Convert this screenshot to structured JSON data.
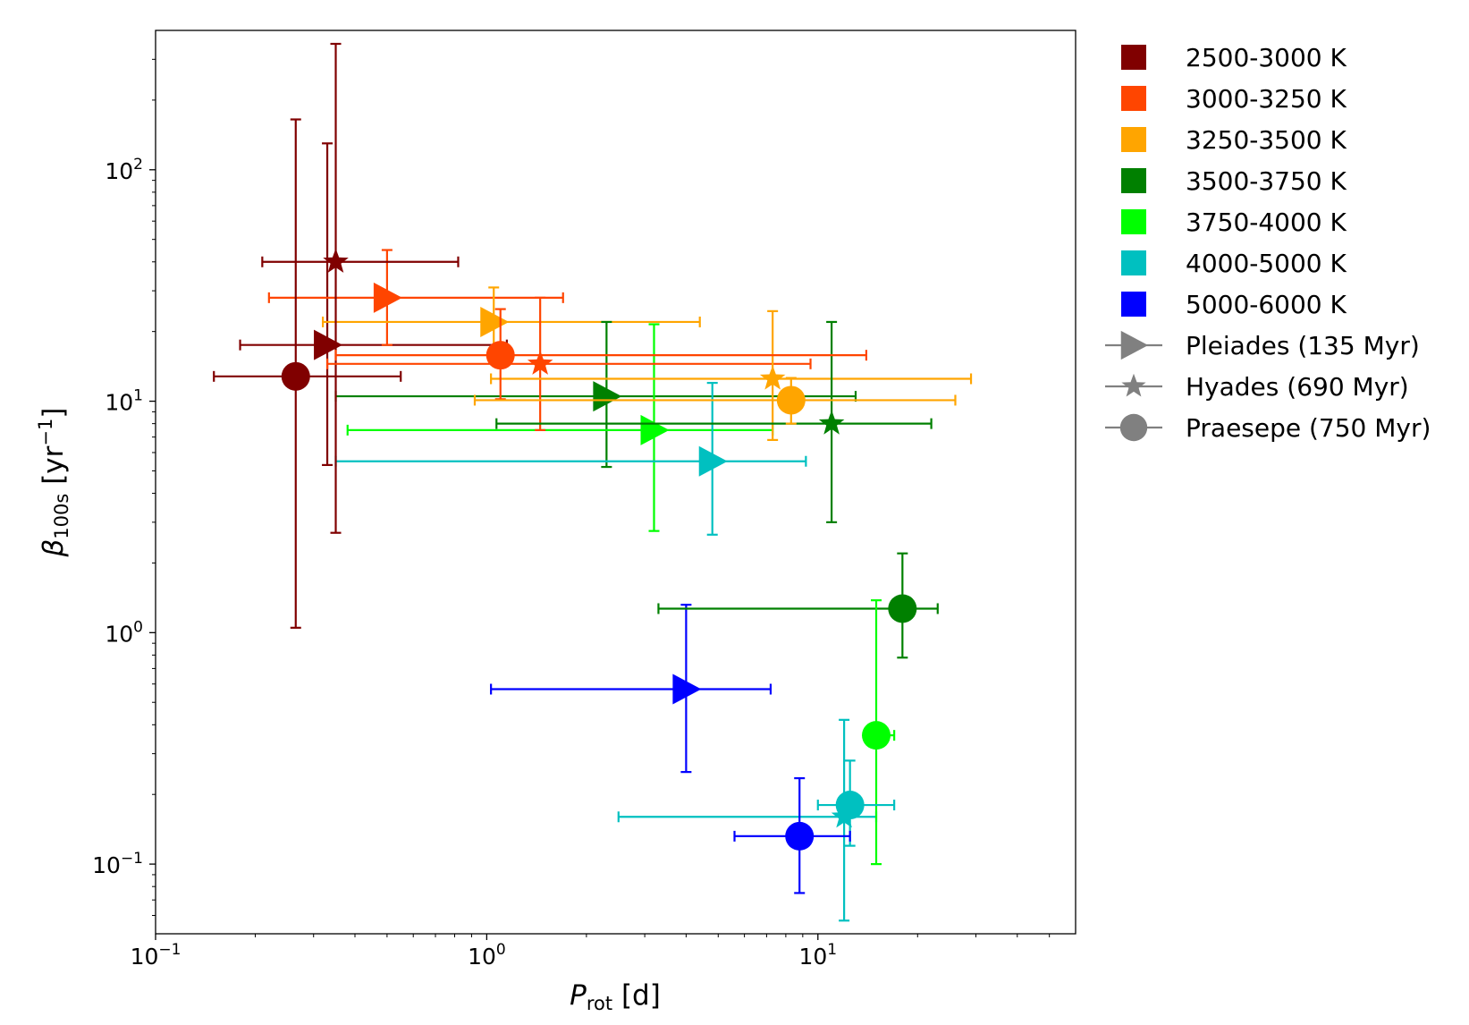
{
  "chart_data": {
    "type": "scatter",
    "x_axis": {
      "label_main": "P",
      "label_sub": "rot",
      "label_unit": " [d]",
      "scale": "log",
      "range": [
        0.1,
        60
      ],
      "major_ticks": [
        {
          "value": 0.1,
          "base": "10",
          "exp": "−1"
        },
        {
          "value": 1,
          "base": "10",
          "exp": "0"
        },
        {
          "value": 10,
          "base": "10",
          "exp": "1"
        }
      ]
    },
    "y_axis": {
      "label_main": "β",
      "label_sub": "100s",
      "label_unit_pre": " [yr",
      "label_unit_exp": "−1",
      "label_unit_post": "]",
      "scale": "log",
      "range": [
        0.05,
        400
      ],
      "major_ticks": [
        {
          "value": 0.1,
          "base": "10",
          "exp": "−1"
        },
        {
          "value": 1,
          "base": "10",
          "exp": "0"
        },
        {
          "value": 10,
          "base": "10",
          "exp": "1"
        },
        {
          "value": 100,
          "base": "10",
          "exp": "2"
        }
      ]
    },
    "grid": false,
    "legend_position": "outside-right",
    "colors": {
      "2500-3000 K": "#800000",
      "3000-3250 K": "#ff4500",
      "3250-3500 K": "#ffa500",
      "3500-3750 K": "#008000",
      "3750-4000 K": "#00ff00",
      "4000-5000 K": "#00c0c0",
      "5000-6000 K": "#0000ff"
    },
    "legend": {
      "temperature_bins": [
        "2500-3000 K",
        "3000-3250 K",
        "3250-3500 K",
        "3500-3750 K",
        "3750-4000 K",
        "4000-5000 K",
        "5000-6000 K"
      ],
      "clusters": [
        {
          "name": "Pleiades (135 Myr)",
          "marker": "triangle-right"
        },
        {
          "name": "Hyades (690 Myr)",
          "marker": "star"
        },
        {
          "name": "Praesepe (750 Myr)",
          "marker": "circle"
        }
      ],
      "cluster_marker_color": "#808080"
    },
    "points": [
      {
        "cluster": "Pleiades",
        "bin": "2500-3000 K",
        "x": 0.33,
        "x_err": [
          0.18,
          1.15
        ],
        "y": 17.5,
        "y_err": [
          5.3,
          130
        ]
      },
      {
        "cluster": "Pleiades",
        "bin": "3000-3250 K",
        "x": 0.5,
        "x_err": [
          0.22,
          1.7
        ],
        "y": 28,
        "y_err": [
          17.5,
          45
        ]
      },
      {
        "cluster": "Pleiades",
        "bin": "3250-3500 K",
        "x": 1.05,
        "x_err": [
          0.32,
          4.4
        ],
        "y": 22,
        "y_err": [
          15,
          31
        ]
      },
      {
        "cluster": "Pleiades",
        "bin": "3500-3750 K",
        "x": 2.3,
        "x_err": [
          0.35,
          13
        ],
        "y": 10.5,
        "y_err": [
          5.2,
          22
        ]
      },
      {
        "cluster": "Pleiades",
        "bin": "3750-4000 K",
        "x": 3.2,
        "x_err": [
          0.38,
          7.3
        ],
        "y": 7.5,
        "y_err": [
          2.75,
          21.5
        ]
      },
      {
        "cluster": "Pleiades",
        "bin": "4000-5000 K",
        "x": 4.8,
        "x_err": [
          0.35,
          9.2
        ],
        "y": 5.5,
        "y_err": [
          2.65,
          12
        ]
      },
      {
        "cluster": "Pleiades",
        "bin": "5000-6000 K",
        "x": 4.0,
        "x_err": [
          1.03,
          7.2
        ],
        "y": 0.57,
        "y_err": [
          0.25,
          1.32
        ]
      },
      {
        "cluster": "Hyades",
        "bin": "2500-3000 K",
        "x": 0.35,
        "x_err": [
          0.21,
          0.82
        ],
        "y": 40,
        "y_err": [
          2.7,
          350
        ]
      },
      {
        "cluster": "Hyades",
        "bin": "3000-3250 K",
        "x": 1.45,
        "x_err": [
          0.33,
          9.5
        ],
        "y": 14.5,
        "y_err": [
          7.5,
          28
        ]
      },
      {
        "cluster": "Hyades",
        "bin": "3250-3500 K",
        "x": 7.3,
        "x_err": [
          1.03,
          29
        ],
        "y": 12.5,
        "y_err": [
          6.8,
          24.5
        ]
      },
      {
        "cluster": "Hyades",
        "bin": "3500-3750 K",
        "x": 11,
        "x_err": [
          1.07,
          22
        ],
        "y": 8,
        "y_err": [
          3.0,
          22
        ]
      },
      {
        "cluster": "Hyades",
        "bin": "4000-5000 K",
        "x": 12,
        "x_err": [
          2.5,
          15
        ],
        "y": 0.16,
        "y_err": [
          0.057,
          0.42
        ]
      },
      {
        "cluster": "Praesepe",
        "bin": "2500-3000 K",
        "x": 0.265,
        "x_err": [
          0.15,
          0.55
        ],
        "y": 12.8,
        "y_err": [
          1.05,
          165
        ]
      },
      {
        "cluster": "Praesepe",
        "bin": "3000-3250 K",
        "x": 1.1,
        "x_err": [
          0.35,
          14
        ],
        "y": 15.8,
        "y_err": [
          10.2,
          25
        ]
      },
      {
        "cluster": "Praesepe",
        "bin": "3250-3500 K",
        "x": 8.3,
        "x_err": [
          0.92,
          26
        ],
        "y": 10.1,
        "y_err": [
          8.0,
          12.6
        ]
      },
      {
        "cluster": "Praesepe",
        "bin": "3500-3750 K",
        "x": 18,
        "x_err": [
          3.3,
          23
        ],
        "y": 1.27,
        "y_err": [
          0.78,
          2.2
        ]
      },
      {
        "cluster": "Praesepe",
        "bin": "3750-4000 K",
        "x": 15,
        "x_err": [
          13.8,
          17.0
        ],
        "y": 0.36,
        "y_err": [
          0.1,
          1.38
        ]
      },
      {
        "cluster": "Praesepe",
        "bin": "4000-5000 K",
        "x": 12.5,
        "x_err": [
          10,
          17
        ],
        "y": 0.18,
        "y_err": [
          0.12,
          0.28
        ]
      },
      {
        "cluster": "Praesepe",
        "bin": "5000-6000 K",
        "x": 8.8,
        "x_err": [
          5.6,
          12.5
        ],
        "y": 0.132,
        "y_err": [
          0.075,
          0.235
        ]
      }
    ]
  }
}
